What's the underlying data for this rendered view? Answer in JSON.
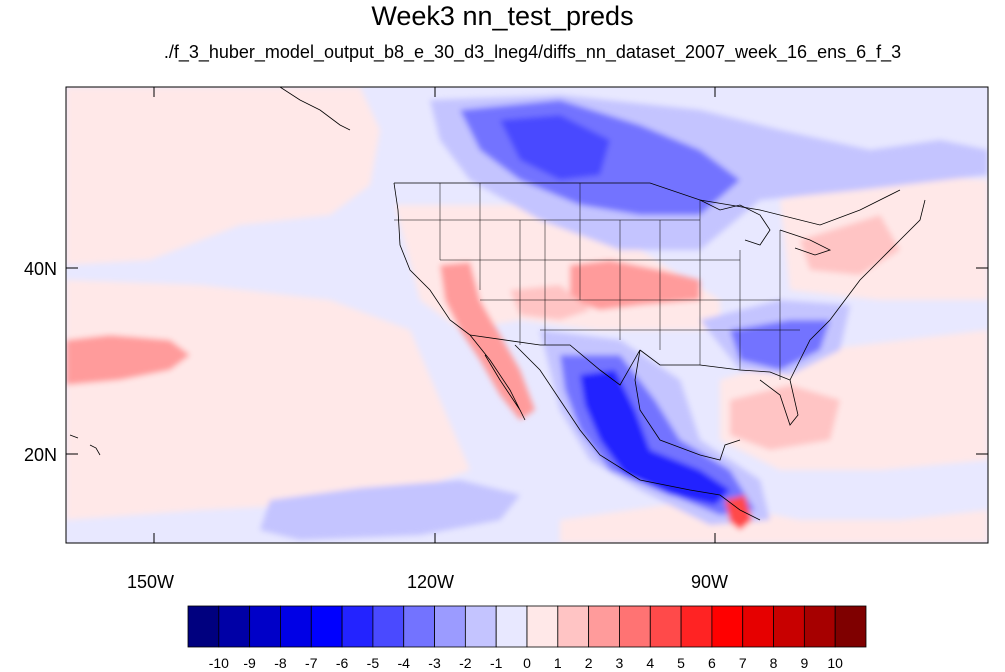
{
  "title": "Week3 nn_test_preds",
  "subtitle": "./f_3_huber_model_output_b8_e_30_d3_lneg4/diffs_nn_dataset_2007_week_16_ens_6_f_3",
  "map": {
    "projection": "cylindrical-equidistant",
    "lon_range": [
      -165,
      -67
    ],
    "lat_range": [
      11,
      60
    ],
    "background_fill": "#e8e8ff"
  },
  "axes": {
    "x_ticks": [
      {
        "label": "150W",
        "lon": -150
      },
      {
        "label": "120W",
        "lon": -120
      },
      {
        "label": "90W",
        "lon": -90
      }
    ],
    "y_ticks": [
      {
        "label": "40N",
        "lat": 40
      },
      {
        "label": "20N",
        "lat": 20
      }
    ]
  },
  "colorbar": {
    "labels": [
      "-10",
      "-9",
      "-8",
      "-7",
      "-6",
      "-5",
      "-4",
      "-3",
      "-2",
      "-1",
      "0",
      "1",
      "2",
      "3",
      "4",
      "5",
      "6",
      "7",
      "8",
      "9",
      "10"
    ],
    "colors": [
      "#00007f",
      "#0000a6",
      "#0000c8",
      "#0000e6",
      "#0000ff",
      "#2323ff",
      "#4a4aff",
      "#7373ff",
      "#9b9bff",
      "#c4c4ff",
      "#e8e8ff",
      "#ffe8e8",
      "#ffc4c4",
      "#ff9b9b",
      "#ff7373",
      "#ff4a4a",
      "#ff2323",
      "#ff0000",
      "#e60000",
      "#c80000",
      "#a60000",
      "#7f0000"
    ]
  }
}
